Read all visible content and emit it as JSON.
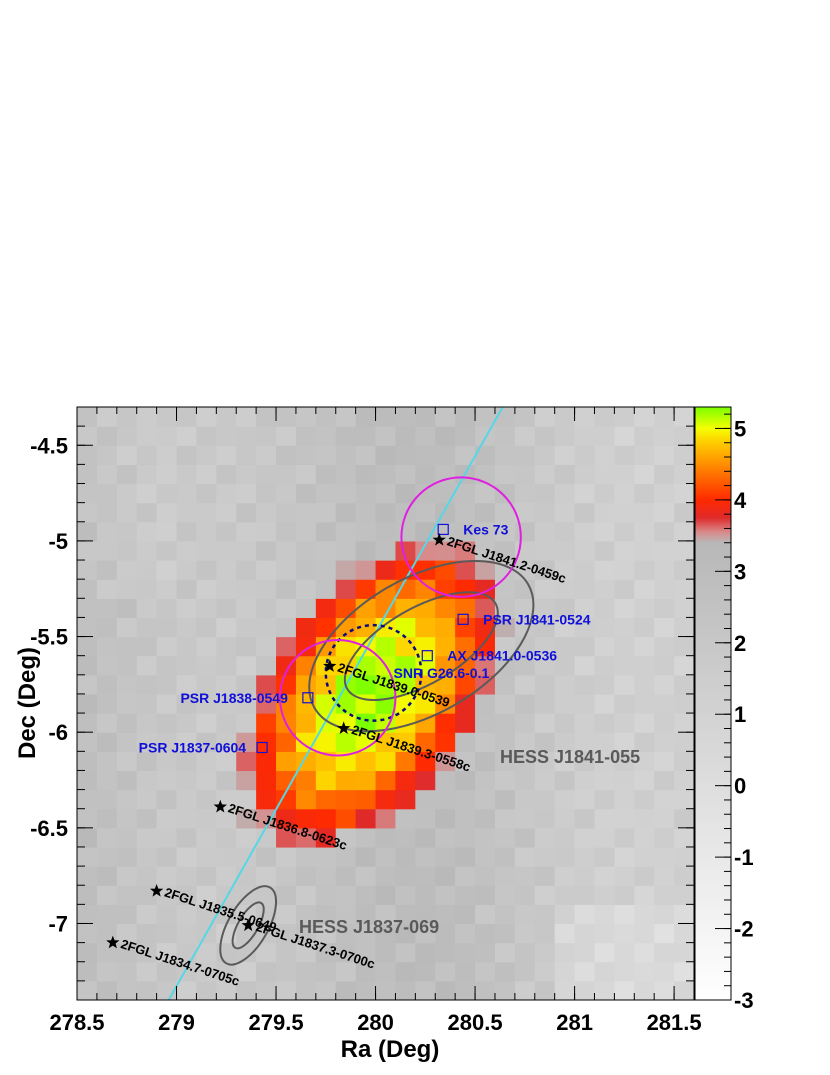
{
  "chart_data": {
    "type": "heatmap",
    "title": "",
    "xlabel": "Ra (Deg)",
    "ylabel": "Dec (Deg)",
    "xlim": [
      278.5,
      281.6
    ],
    "ylim": [
      -7.4,
      -4.3
    ],
    "x_ticks": [
      "278.5",
      "279",
      "279.5",
      "280",
      "280.5",
      "281",
      "281.5"
    ],
    "y_ticks": [
      "-4.5",
      "-5",
      "-5.5",
      "-6",
      "-6.5",
      "-7"
    ],
    "colorbar": {
      "range": [
        -3,
        5.3
      ],
      "ticks": [
        "5",
        "4",
        "3",
        "2",
        "1",
        "0",
        "-1",
        "-2",
        "-3"
      ],
      "gradient": [
        {
          "value": -3,
          "color": "#ffffff"
        },
        {
          "value": 3.4,
          "color": "#b8b8b8"
        },
        {
          "value": 3.55,
          "color": "#d88a8a"
        },
        {
          "value": 3.75,
          "color": "#e02a2a"
        },
        {
          "value": 4.0,
          "color": "#ff2a00"
        },
        {
          "value": 4.4,
          "color": "#ff7a00"
        },
        {
          "value": 4.8,
          "color": "#ffcc00"
        },
        {
          "value": 5.0,
          "color": "#f4ff00"
        },
        {
          "value": 5.3,
          "color": "#7cff00"
        }
      ]
    },
    "significance_blob": {
      "center": [
        279.98,
        -5.8
      ],
      "peak": 5.25,
      "shape": "elongated along galactic plane"
    },
    "fermi_sources": [
      {
        "label": "2FGL J1841.2-0459c",
        "ra": 280.32,
        "dec": -4.995
      },
      {
        "label": "2FGL J1839.0-0539",
        "ra": 279.77,
        "dec": -5.655
      },
      {
        "label": "2FGL J1839.3-0558c",
        "ra": 279.84,
        "dec": -5.98
      },
      {
        "label": "2FGL J1836.8-0623c",
        "ra": 279.22,
        "dec": -6.39
      },
      {
        "label": "2FGL J1835.5-0649",
        "ra": 278.9,
        "dec": -6.83
      },
      {
        "label": "2FGL J1837.3-0700c",
        "ra": 279.36,
        "dec": -7.01
      },
      {
        "label": "2FGL J1834.7-0705c",
        "ra": 278.68,
        "dec": -7.1
      }
    ],
    "counterparts": [
      {
        "label": "Kes 73",
        "ra": 280.34,
        "dec": -4.94
      },
      {
        "label": "PSR J1841-0524",
        "ra": 280.44,
        "dec": -5.41
      },
      {
        "label": "AX J1841.0-0536",
        "ra": 280.26,
        "dec": -5.6
      },
      {
        "label": "PSR J1838-0549",
        "ra": 279.66,
        "dec": -5.82
      },
      {
        "label": "PSR J1837-0604",
        "ra": 279.43,
        "dec": -6.08
      }
    ],
    "snr": {
      "label": "SNR G26.6-0.1",
      "ra": 279.99,
      "dec": -5.69,
      "radius_deg": 0.24
    },
    "hess_sources": [
      {
        "label": "HESS J1841-055",
        "ra": 280.23,
        "dec": -5.55,
        "axes_deg": [
          0.43,
          0.19
        ],
        "outer_axes_deg": [
          0.62,
          0.34
        ],
        "angle_deg": -30
      },
      {
        "label": "HESS J1837-069",
        "ra": 279.36,
        "dec": -7.01,
        "axes_deg": [
          0.13,
          0.05
        ],
        "outer_axes_deg": [
          0.22,
          0.1
        ],
        "angle_deg": -60
      }
    ],
    "magenta_circles": [
      {
        "ra": 280.43,
        "dec": -4.98,
        "radius_deg": 0.3
      },
      {
        "ra": 279.81,
        "dec": -5.82,
        "radius_deg": 0.29
      }
    ],
    "galactic_plane_line": {
      "from": [
        278.95,
        -7.42
      ],
      "to": [
        280.65,
        -4.28
      ],
      "color": "#55d7e6"
    },
    "colors": {
      "counterparts": "#1010d8",
      "hess": "#5a5a5a",
      "magenta": "#e020e0",
      "star": "#000000"
    }
  }
}
